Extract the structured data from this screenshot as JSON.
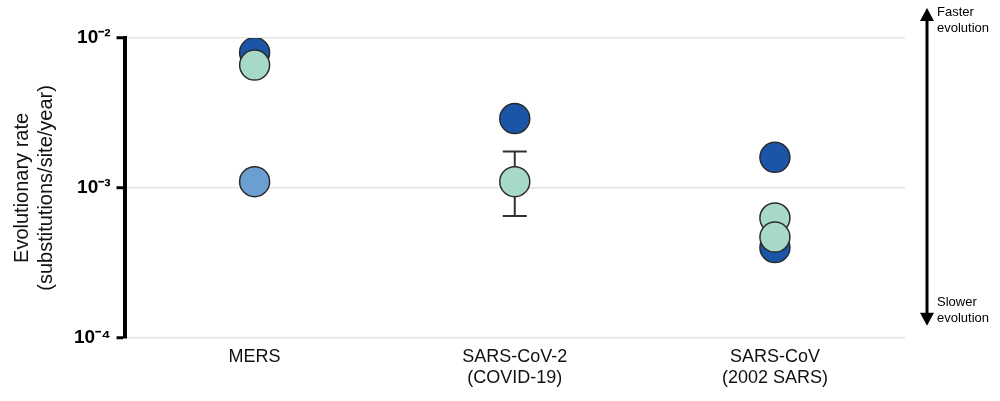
{
  "chart_data": {
    "type": "scatter",
    "y_label": [
      "Evolutionary rate",
      "(substitutions/site/year)"
    ],
    "categories": [
      "MERS",
      [
        "SARS-CoV-2",
        "(COVID-19)"
      ],
      [
        "SARS-CoV",
        "(2002 SARS)"
      ]
    ],
    "values": [
      [
        0.0066,
        0.0011,
        0.00063,
        0.00047
      ],
      [
        0.0011
      ],
      [
        0.008,
        0.0029,
        0.0016,
        0.0004
      ]
    ],
    "colors": [
      "#a6d9c7",
      "#6b9fd1",
      "#1a55a8"
    ],
    "error_bars": [
      null,
      {
        "low": 0.00065,
        "high": 0.00175
      },
      null
    ],
    "ylim": [
      0.0001,
      0.01
    ],
    "yticks": [
      {
        "value": 0.0001,
        "label": "10⁻⁴"
      },
      {
        "value": 0.001,
        "label": "10⁻³"
      },
      {
        "value": 0.01,
        "label": "10⁻²"
      }
    ],
    "log": "y",
    "grid": true,
    "marker": "circle",
    "annotations": [
      {
        "text": [
          "Faster",
          "evolution"
        ]
      },
      {
        "text": [
          "Slower",
          "evolution"
        ]
      }
    ]
  }
}
